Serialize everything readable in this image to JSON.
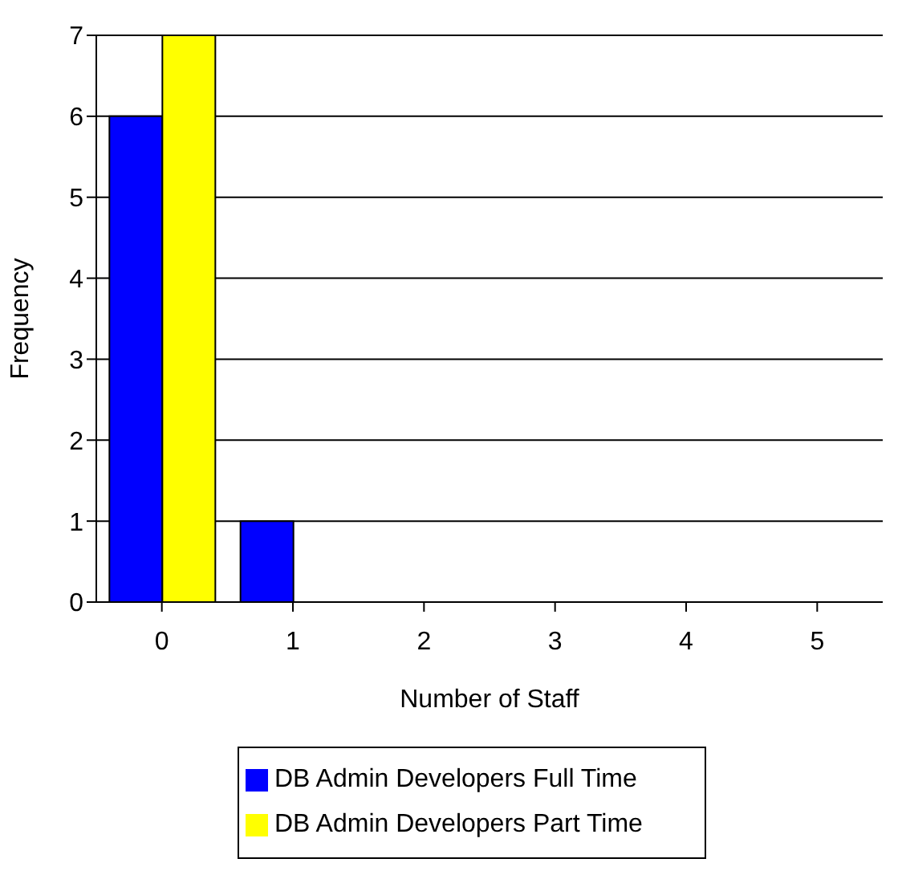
{
  "chart_data": {
    "type": "bar",
    "xlabel": "Number of Staff",
    "ylabel": "Frequency",
    "categories": [
      "0",
      "1",
      "2",
      "3",
      "4",
      "5"
    ],
    "series": [
      {
        "name": "DB Admin Developers Full Time",
        "color": "#0000ff",
        "values": [
          6,
          1,
          0,
          0,
          0,
          0
        ]
      },
      {
        "name": "DB Admin Developers Part Time",
        "color": "#ffff00",
        "values": [
          7,
          0,
          0,
          0,
          0,
          0
        ]
      }
    ],
    "ylim": [
      0,
      7
    ],
    "yticks": [
      0,
      1,
      2,
      3,
      4,
      5,
      6,
      7
    ],
    "grid": "y",
    "legend": "bottom"
  }
}
